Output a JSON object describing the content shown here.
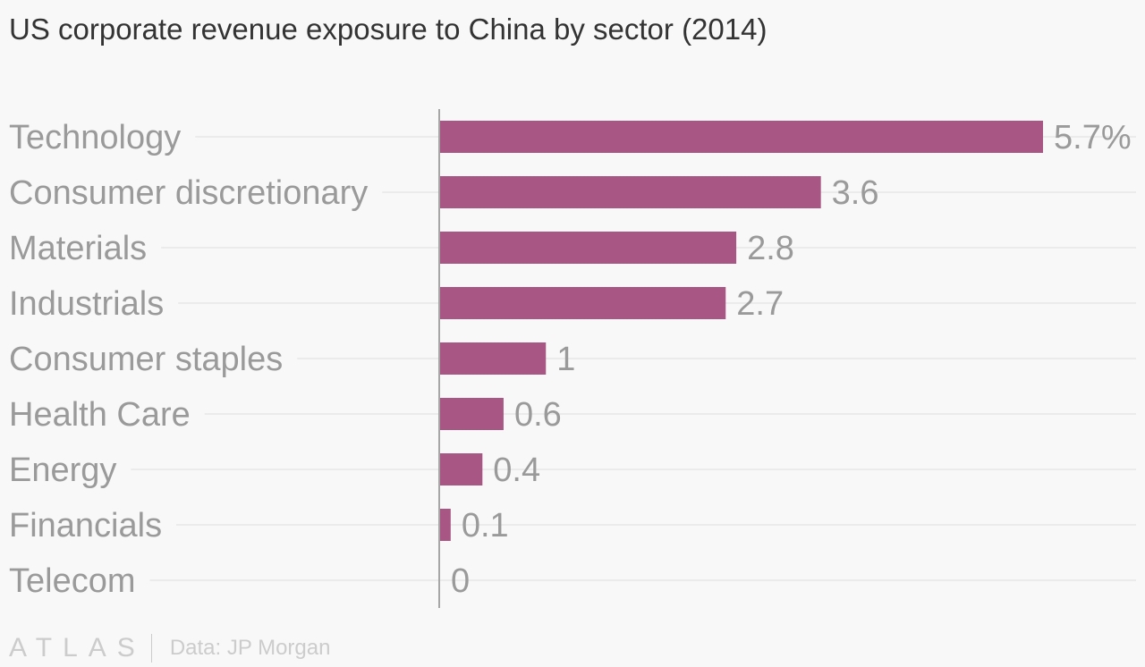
{
  "chart_data": {
    "type": "bar",
    "orientation": "horizontal",
    "title": "US corporate revenue exposure to China by sector (2014)",
    "categories": [
      "Technology",
      "Consumer discretionary",
      "Materials",
      "Industrials",
      "Consumer staples",
      "Health Care",
      "Energy",
      "Financials",
      "Telecom"
    ],
    "values": [
      5.7,
      3.6,
      2.8,
      2.7,
      1,
      0.6,
      0.4,
      0.1,
      0
    ],
    "data_labels": [
      "5.7%",
      "3.6",
      "2.8",
      "2.7",
      "1",
      "0.6",
      "0.4",
      "0.1",
      "0"
    ],
    "xlim": [
      0,
      5.7
    ],
    "grid": true,
    "bar_color": "#a85784"
  },
  "footer": {
    "logo": "ATLAS",
    "source": "Data: JP Morgan"
  }
}
